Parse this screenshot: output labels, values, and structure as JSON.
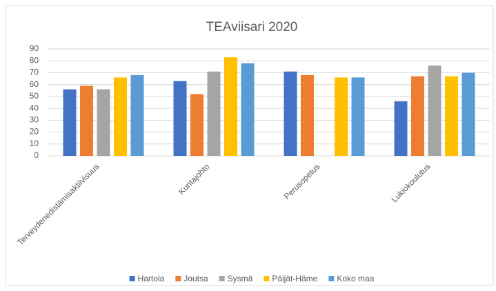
{
  "chart_data": {
    "type": "bar",
    "title": "TEAviisari 2020",
    "categories": [
      "Terveydenedistämisaktiivisuus",
      "Kuntajohto",
      "Perusopetus",
      "Lukiokoulutus"
    ],
    "series": [
      {
        "name": "Hartola",
        "color": "#4472c4",
        "values": [
          56,
          63,
          71,
          46
        ]
      },
      {
        "name": "Joutsa",
        "color": "#ed7d31",
        "values": [
          59,
          52,
          68,
          67
        ]
      },
      {
        "name": "Sysmä",
        "color": "#a5a5a5",
        "values": [
          56,
          71,
          null,
          76
        ]
      },
      {
        "name": "Päijät-Häme",
        "color": "#ffc000",
        "values": [
          66,
          83,
          66,
          67
        ]
      },
      {
        "name": "Koko maa",
        "color": "#5b9bd5",
        "values": [
          68,
          78,
          66,
          70
        ]
      }
    ],
    "ylim": [
      0,
      90
    ],
    "yticks": [
      0,
      10,
      20,
      30,
      40,
      50,
      60,
      70,
      80,
      90
    ],
    "grid": true,
    "legend": "bottom"
  }
}
